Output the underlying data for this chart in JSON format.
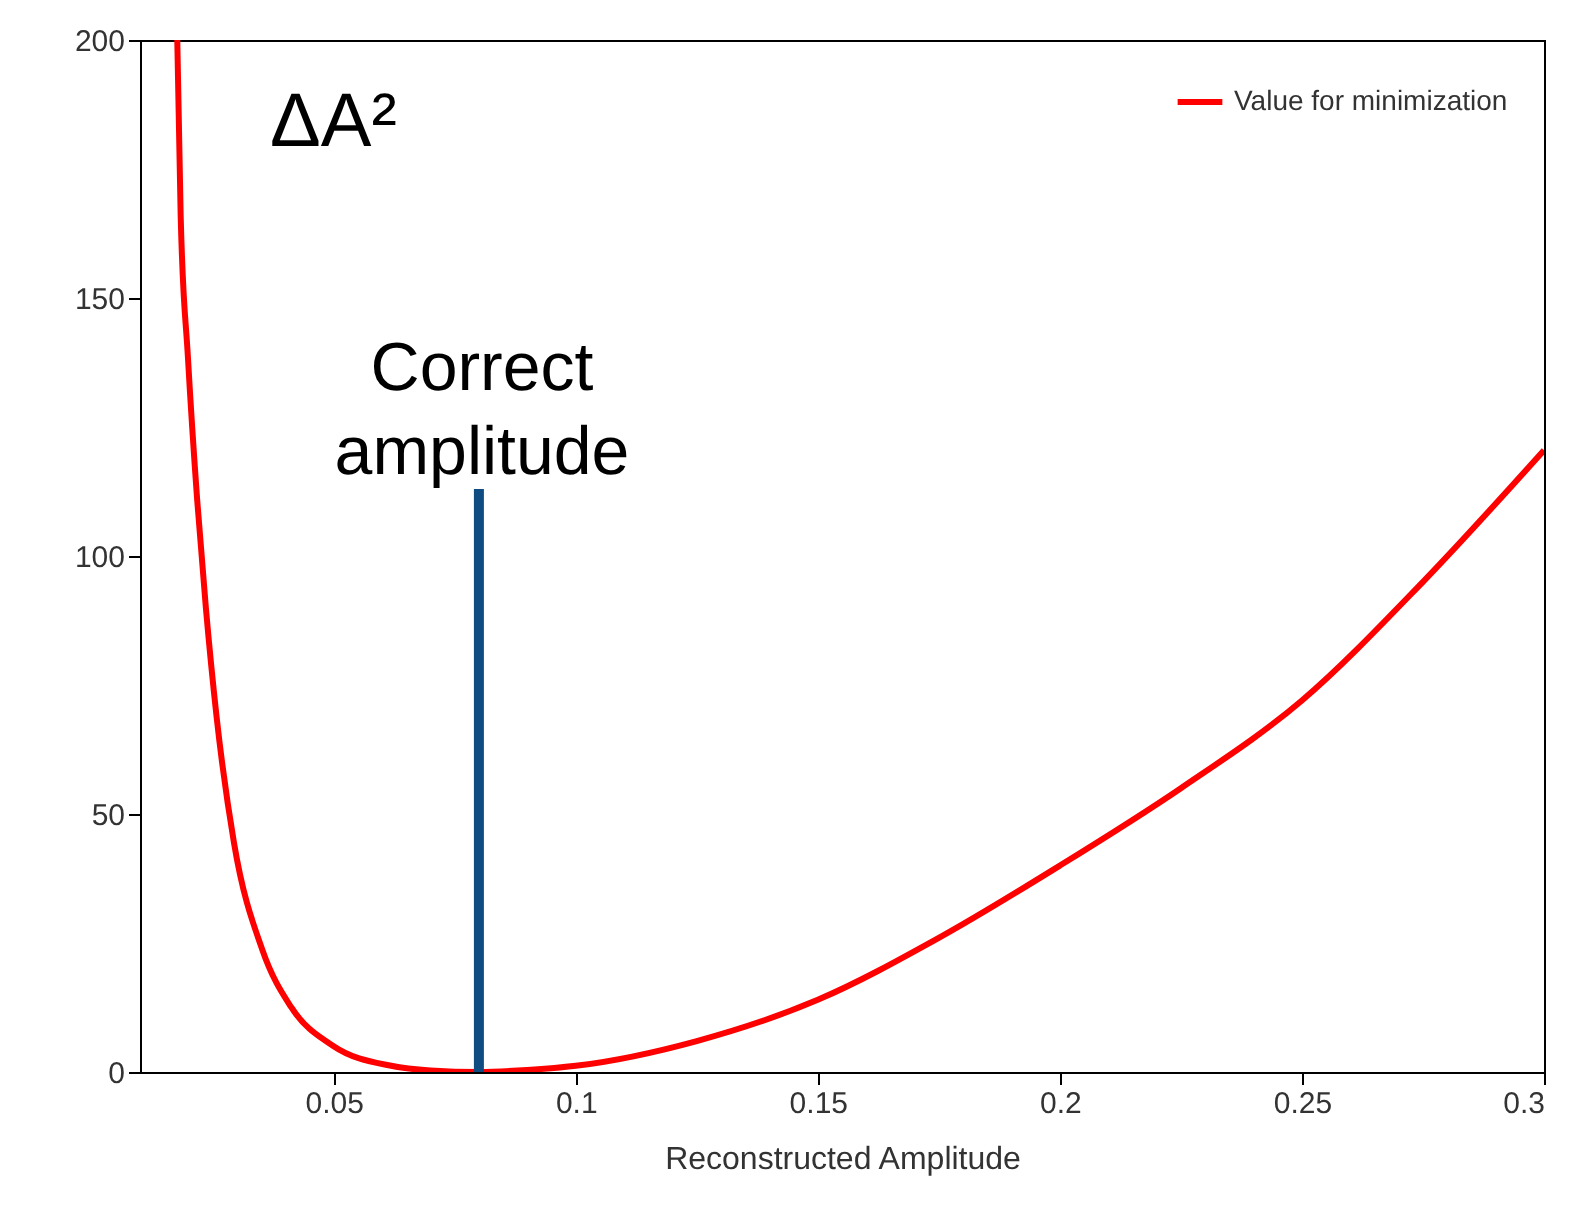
{
  "chart_data": {
    "type": "line",
    "xlabel": "Reconstructed Amplitude",
    "xlim": [
      0.01,
      0.3
    ],
    "xticks": [
      0.05,
      0.1,
      0.15,
      0.2,
      0.25,
      0.3
    ],
    "ylim": [
      0,
      200
    ],
    "yticks": [
      0,
      50,
      100,
      150,
      200
    ],
    "grid": false,
    "legend": "top right",
    "line_style": "solid",
    "marker": "none",
    "series": [
      {
        "name": "Value for minimization",
        "color": "#ff0000",
        "x": [
          0.0177,
          0.0184,
          0.0199,
          0.0218,
          0.0236,
          0.0258,
          0.0294,
          0.0353,
          0.0412,
          0.05,
          0.0619,
          0.07,
          0.08,
          0.09,
          0.1,
          0.125,
          0.15,
          0.175,
          0.2,
          0.225,
          0.25,
          0.275,
          0.3
        ],
        "values": [
          200,
          166,
          138.5,
          111,
          90,
          69,
          44.5,
          23.6,
          12.6,
          5,
          1.2,
          0.3,
          0,
          0.4,
          1.2,
          6,
          14,
          26,
          40,
          55,
          72,
          95,
          120.5
        ]
      },
      {
        "color": "#0f4c81",
        "x": [
          0.08,
          0.08
        ],
        "values": [
          0,
          113
        ]
      }
    ],
    "annotations": [
      "ΔA²",
      "Correct amplitude"
    ]
  }
}
